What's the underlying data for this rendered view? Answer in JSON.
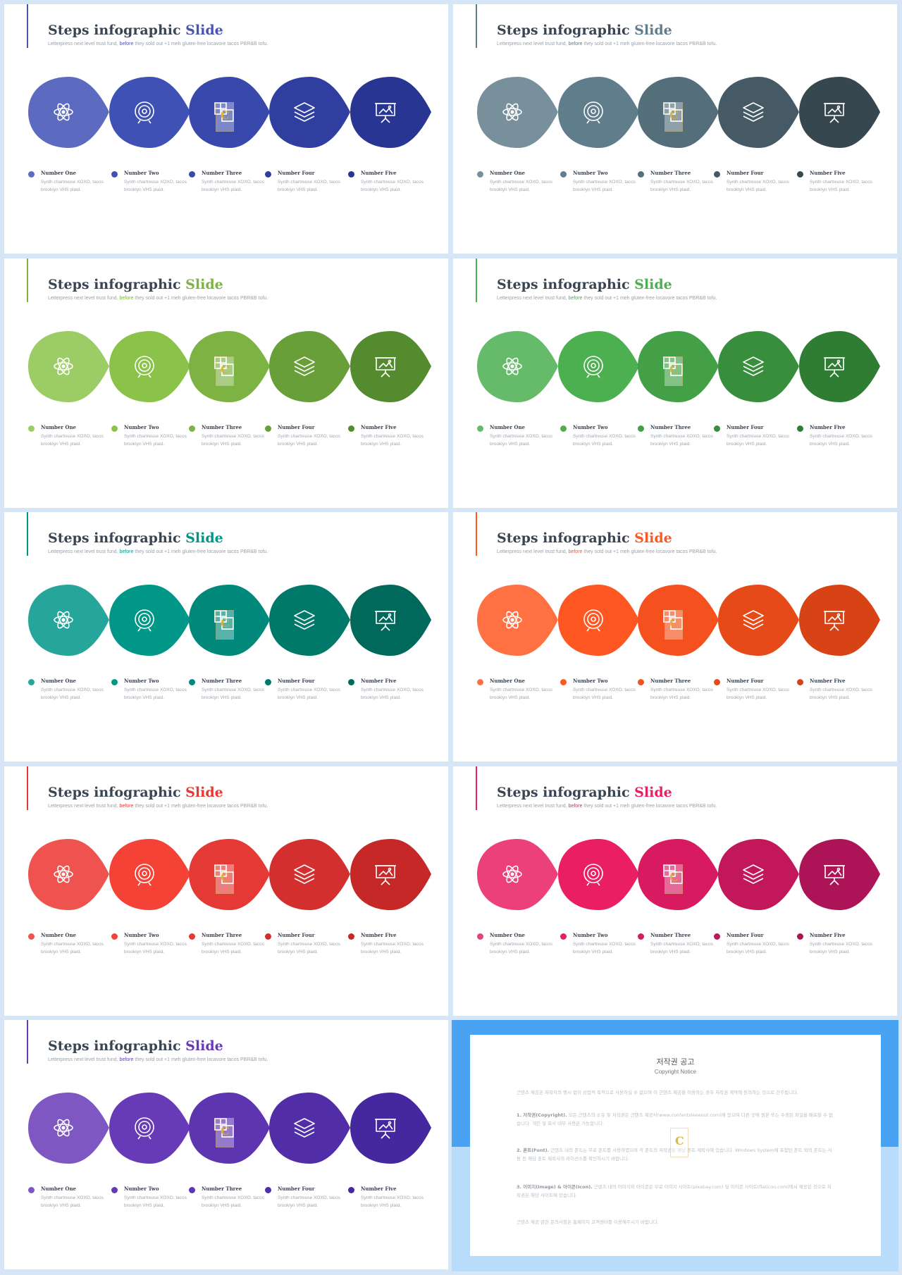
{
  "slide_common": {
    "title_main": "Steps infographic ",
    "title_accent": "Slide",
    "subtitle_pre": "Letterpress next level trust fund,",
    "subtitle_accent": "before",
    "subtitle_post": "they sold out +1 meh gluten-free locavore tacos PBR&B tofu.",
    "steps": [
      {
        "title": "Number One",
        "desc": "Synth chartreuse XOXO, tacos brooklyn VHS plaid.",
        "icon": "atom-icon"
      },
      {
        "title": "Number Two",
        "desc": "Synth chartreuse XOXO, tacos brooklyn VHS plaid.",
        "icon": "target-icon"
      },
      {
        "title": "Number Three",
        "desc": "Synth chartreuse XOXO, tacos brooklyn VHS plaid.",
        "icon": "puzzle-icon"
      },
      {
        "title": "Number Four",
        "desc": "Synth chartreuse XOXO, tacos brooklyn VHS plaid.",
        "icon": "layers-icon"
      },
      {
        "title": "Number Five",
        "desc": "Synth chartreuse XOXO, tacos brooklyn VHS plaid.",
        "icon": "presentation-icon"
      }
    ]
  },
  "slides": [
    {
      "theme": "indigo",
      "accent": "#4a55b0",
      "colors": [
        "#5c6bc0",
        "#3f51b5",
        "#3949ab",
        "#303f9f",
        "#283593"
      ]
    },
    {
      "theme": "blue-grey",
      "accent": "#607d8b",
      "colors": [
        "#78909c",
        "#607d8b",
        "#546e7a",
        "#455a64",
        "#37474f"
      ]
    },
    {
      "theme": "light-green",
      "accent": "#7cb342",
      "colors": [
        "#9ccc65",
        "#8bc34a",
        "#7cb342",
        "#689f38",
        "#558b2f"
      ]
    },
    {
      "theme": "green",
      "accent": "#4caf50",
      "colors": [
        "#66bb6a",
        "#4caf50",
        "#43a047",
        "#388e3c",
        "#2e7d32"
      ]
    },
    {
      "theme": "teal",
      "accent": "#009688",
      "colors": [
        "#26a69a",
        "#009688",
        "#00897b",
        "#00796b",
        "#00695c"
      ]
    },
    {
      "theme": "deep-orange",
      "accent": "#ff5722",
      "colors": [
        "#ff7043",
        "#ff5722",
        "#f4511e",
        "#e64a19",
        "#d84315"
      ]
    },
    {
      "theme": "red",
      "accent": "#e53935",
      "colors": [
        "#ef5350",
        "#f44336",
        "#e53935",
        "#d32f2f",
        "#c62828"
      ]
    },
    {
      "theme": "pink",
      "accent": "#e91e63",
      "colors": [
        "#ec407a",
        "#e91e63",
        "#d81b60",
        "#c2185b",
        "#ad1457"
      ]
    },
    {
      "theme": "deep-purple",
      "accent": "#673ab7",
      "colors": [
        "#7e57c2",
        "#673ab7",
        "#5e35b1",
        "#512da8",
        "#4527a0"
      ]
    }
  ],
  "watermark": {
    "letter": "C"
  },
  "copyright": {
    "title": "저작권 공고",
    "subtitle": "Copyright Notice",
    "paragraphs": [
      {
        "bold": "",
        "text": "근텐츠 제공은 저작자의 명시 없이 상업적 목적으로 사용하실 수 없으며 이 근텐츠 제공을 이용하는 경우 저작권 계약에 동의하는 것으로 간주됩니다."
      },
      {
        "bold": "1. 저작권(Copyright).",
        "text": " 모든 근텐츠의 소유 및 저작권은 근텐츠 제공사(www.contentsleeeout.com)에 있으며 다른 곳에 원본 또는 수정된 파일을 배포할 수 없습니다. 개인 및 회사 내부 사용은 가능합니다."
      },
      {
        "bold": "2. 폰트(Font).",
        "text": " 근텐츠 내의 폰트는 무료 폰트를 사용하였으며 각 폰트의 저작권은 해당 폰트 제작사에 있습니다. Windows System에 포함된 폰트 외의 폰트는 사용 전 해당 폰트 제작사의 라이선스를 확인하시기 바랍니다."
      },
      {
        "bold": "3. 이미지(Image) & 아이콘(Icon).",
        "text": " 근텐츠 내의 이미지와 아이콘은 무료 이미지 사이트(pixabay.com) 및 아이콘 사이트(flaticon.com)에서 제공된 것으로 저작권은 해당 사이트에 있습니다."
      },
      {
        "bold": "",
        "text": "근텐츠 제공 관련 문의사항은 홈페이지 고객센터를 이용해주시기 바랍니다."
      }
    ]
  }
}
